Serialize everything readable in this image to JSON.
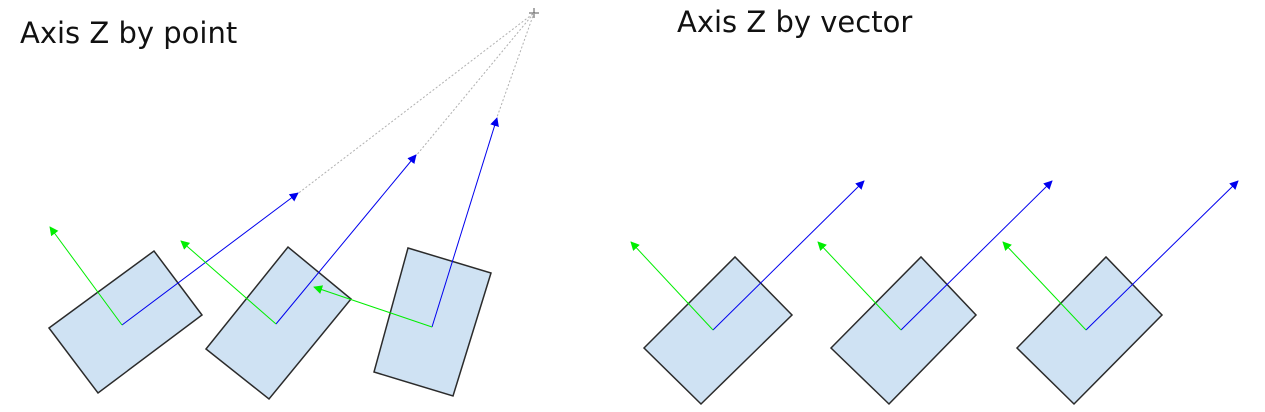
{
  "labels": {
    "left_title": "Axis Z by point",
    "right_title": "Axis Z by vector"
  },
  "colors": {
    "box_fill": "#cfe2f3",
    "box_stroke": "#2b2b2b",
    "z_axis": "#0000ee",
    "y_axis": "#00ee00",
    "guide": "#b0b0b0",
    "text": "#111111"
  },
  "icons": {
    "target_point": "plus-icon"
  }
}
